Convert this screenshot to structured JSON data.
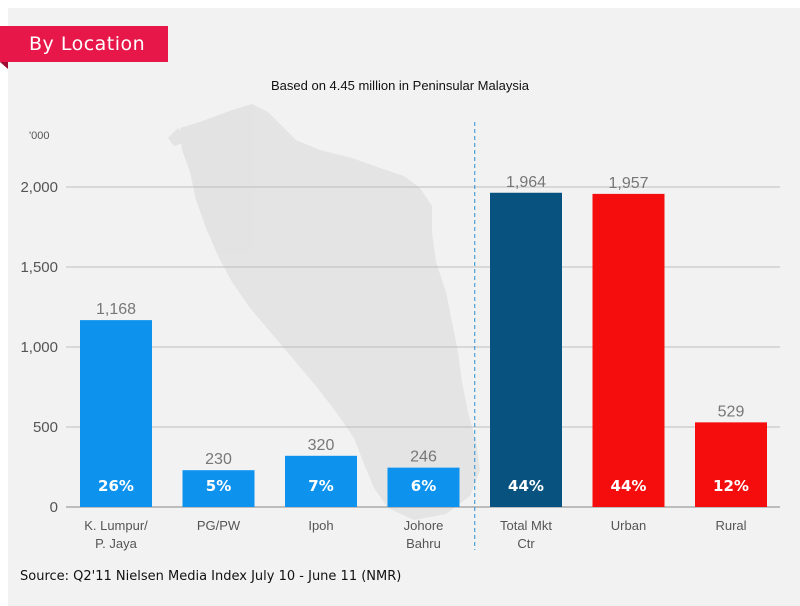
{
  "header": {
    "tag": "By Location"
  },
  "unit_label": "'000",
  "source": "Source: Q2'11 Nielsen Media Index July 10 - June 11 (NMR)",
  "colors": {
    "tag": "#e8174a",
    "blue": "#0d93ee",
    "navy": "#07527e",
    "red": "#f50d0d",
    "panel": "#f2f2f2"
  },
  "chart_data": {
    "type": "bar",
    "title": "Based on 4.45 million in Peninsular Malaysia",
    "xlabel": "",
    "ylabel": "'000",
    "ylim": [
      0,
      2000
    ],
    "yticks": [
      0,
      500,
      1000,
      1500,
      2000
    ],
    "ytick_labels": [
      "0",
      "500",
      "1,000",
      "1,500",
      "2,000"
    ],
    "grid": true,
    "categories": [
      [
        "K. Lumpur/",
        "P. Jaya"
      ],
      [
        "PG/PW"
      ],
      [
        "Ipoh"
      ],
      [
        "Johore",
        "Bahru"
      ],
      [
        "Total Mkt",
        "Ctr"
      ],
      [
        "Urban"
      ],
      [
        "Rural"
      ]
    ],
    "values": [
      1168,
      230,
      320,
      246,
      1964,
      1957,
      529
    ],
    "value_labels": [
      "1,168",
      "230",
      "320",
      "246",
      "1,964",
      "1,957",
      "529"
    ],
    "percent_labels": [
      "26%",
      "5%",
      "7%",
      "6%",
      "44%",
      "44%",
      "12%"
    ],
    "bar_colors": [
      "#0d93ee",
      "#0d93ee",
      "#0d93ee",
      "#0d93ee",
      "#07527e",
      "#f50d0d",
      "#f50d0d"
    ],
    "divider_after_index": 3
  }
}
